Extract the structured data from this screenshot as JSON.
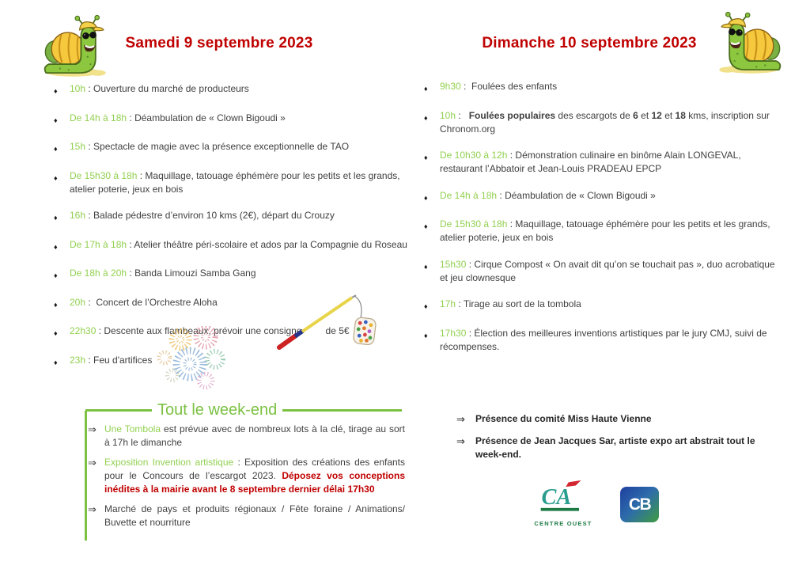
{
  "colors": {
    "title_red": "#c00000",
    "time_green": "#92d050",
    "weekend_green": "#7cc142",
    "body_text": "#3f3f3f",
    "notice_red": "#c00000",
    "ca_teal": "#2a9d8f",
    "ca_green": "#1d7a45",
    "ca_red": "#d22630",
    "cb_blue": "#1e3f9e",
    "cb_green": "#3f9c3f"
  },
  "saturday": {
    "title": "Samedi 9 septembre 2023",
    "items": [
      {
        "segments": [
          {
            "t": "10h",
            "cls": "time"
          },
          {
            "t": " : Ouverture du marché de producteurs",
            "cls": "plain"
          }
        ]
      },
      {
        "segments": [
          {
            "t": "De 14h à 18h",
            "cls": "time"
          },
          {
            "t": " : Déambulation de « Clown Bigoudi »",
            "cls": "plain"
          }
        ]
      },
      {
        "segments": [
          {
            "t": "15h",
            "cls": "time"
          },
          {
            "t": " : Spectacle de magie avec la présence exceptionnelle de TAO",
            "cls": "plain"
          }
        ]
      },
      {
        "segments": [
          {
            "t": "De 15h30 à 18h",
            "cls": "time"
          },
          {
            "t": " : Maquillage, tatouage éphémère pour les petits et les grands, atelier poterie, jeux en bois",
            "cls": "plain"
          }
        ]
      },
      {
        "segments": [
          {
            "t": "16h",
            "cls": "time"
          },
          {
            "t": " : Balade pédestre d’environ 10 kms (2€), départ du Crouzy",
            "cls": "plain"
          }
        ]
      },
      {
        "segments": [
          {
            "t": "De 17h à 18h",
            "cls": "time"
          },
          {
            "t": " : Atelier théâtre péri-scolaire et ados par la Compagnie du Roseau",
            "cls": "plain"
          }
        ]
      },
      {
        "segments": [
          {
            "t": "De 18h à 20h",
            "cls": "time"
          },
          {
            "t": " : Banda Limouzi Samba Gang",
            "cls": "plain"
          }
        ]
      },
      {
        "segments": [
          {
            "t": "20h",
            "cls": "time"
          },
          {
            "t": " :  Concert de l’Orchestre Aloha",
            "cls": "plain"
          }
        ]
      },
      {
        "segments": [
          {
            "t": "22h30",
            "cls": "time"
          },
          {
            "t": " : Descente aux flambeaux, prévoir une consigne",
            "cls": "plain"
          },
          {
            "t": "de 5€",
            "cls": "plain gap"
          }
        ]
      },
      {
        "segments": [
          {
            "t": "23h",
            "cls": "time"
          },
          {
            "t": " : Feu d'artifices",
            "cls": "plain"
          }
        ]
      }
    ]
  },
  "sunday": {
    "title": "Dimanche 10 septembre 2023",
    "items": [
      {
        "segments": [
          {
            "t": "9h30",
            "cls": "time"
          },
          {
            "t": " :  Foulées des enfants",
            "cls": "plain"
          }
        ]
      },
      {
        "segments": [
          {
            "t": "10h",
            "cls": "time"
          },
          {
            "t": " :   ",
            "cls": "plain"
          },
          {
            "t": "Foulées populaires",
            "cls": "bold"
          },
          {
            "t": " des escargots de ",
            "cls": "plain"
          },
          {
            "t": "6",
            "cls": "bold"
          },
          {
            "t": " et ",
            "cls": "plain"
          },
          {
            "t": "12",
            "cls": "bold"
          },
          {
            "t": " et ",
            "cls": "plain"
          },
          {
            "t": "18",
            "cls": "bold"
          },
          {
            "t": " kms, inscription sur Chronom.org",
            "cls": "plain"
          }
        ]
      },
      {
        "segments": [
          {
            "t": "De 10h30 à 12h",
            "cls": "time"
          },
          {
            "t": " : Démonstration culinaire en binôme Alain LONGEVAL, restaurant l’Abbatoir et Jean-Louis PRADEAU EPCP",
            "cls": "plain"
          }
        ]
      },
      {
        "segments": [
          {
            "t": "De 14h à 18h",
            "cls": "time"
          },
          {
            "t": " : Déambulation de « Clown Bigoudi »",
            "cls": "plain"
          }
        ]
      },
      {
        "segments": [
          {
            "t": "De 15h30 à 18h",
            "cls": "time"
          },
          {
            "t": " : Maquillage, tatouage éphémère pour les petits et les grands, atelier poterie, jeux en bois",
            "cls": "plain"
          }
        ]
      },
      {
        "segments": [
          {
            "t": "15h30",
            "cls": "time"
          },
          {
            "t": " : Cirque Compost « On avait dit qu’on se touchait pas », duo acrobatique et jeu clownesque",
            "cls": "plain"
          }
        ]
      },
      {
        "segments": [
          {
            "t": "17h",
            "cls": "time"
          },
          {
            "t": " : Tirage au sort de la tombola",
            "cls": "plain"
          }
        ]
      },
      {
        "segments": [
          {
            "t": "17h30",
            "cls": "time"
          },
          {
            "t": " : Élection des meilleures inventions artistiques par le jury CMJ, suivi de récompenses.",
            "cls": "plain"
          }
        ]
      }
    ]
  },
  "weekend": {
    "title": "Tout le week-end",
    "items": [
      {
        "segments": [
          {
            "t": "Une Tombola",
            "cls": "time"
          },
          {
            "t": " est prévue avec de nombreux lots à la clé, tirage au sort à 17h le dimanche",
            "cls": "plain"
          }
        ]
      },
      {
        "segments": [
          {
            "t": "Exposition Invention artistique",
            "cls": "time"
          },
          {
            "t": " : Exposition des créations des enfants pour le Concours de l’escargot 2023. ",
            "cls": "plain"
          },
          {
            "t": "Déposez vos conceptions inédites à la mairie avant le 8 septembre dernier délai 17h30",
            "cls": "redbold"
          }
        ]
      },
      {
        "segments": [
          {
            "t": "Marché de pays et produits régionaux / Fête foraine / Animations/ Buvette et nourriture",
            "cls": "plain"
          }
        ]
      }
    ]
  },
  "presence": {
    "items": [
      "Présence du comité Miss Haute Vienne",
      "Présence de Jean Jacques Sar, artiste expo art abstrait tout le week-end."
    ]
  },
  "logos": {
    "ca_letters": "CA",
    "ca_subtitle": "CENTRE OUEST",
    "cb_letters": "CB"
  },
  "decorations": {
    "snail_left": "snail-mascot-icon",
    "snail_right": "snail-mascot-mirrored-icon",
    "fireworks": "fireworks-clipart-icon",
    "lantern": "paper-lantern-stick-icon"
  }
}
